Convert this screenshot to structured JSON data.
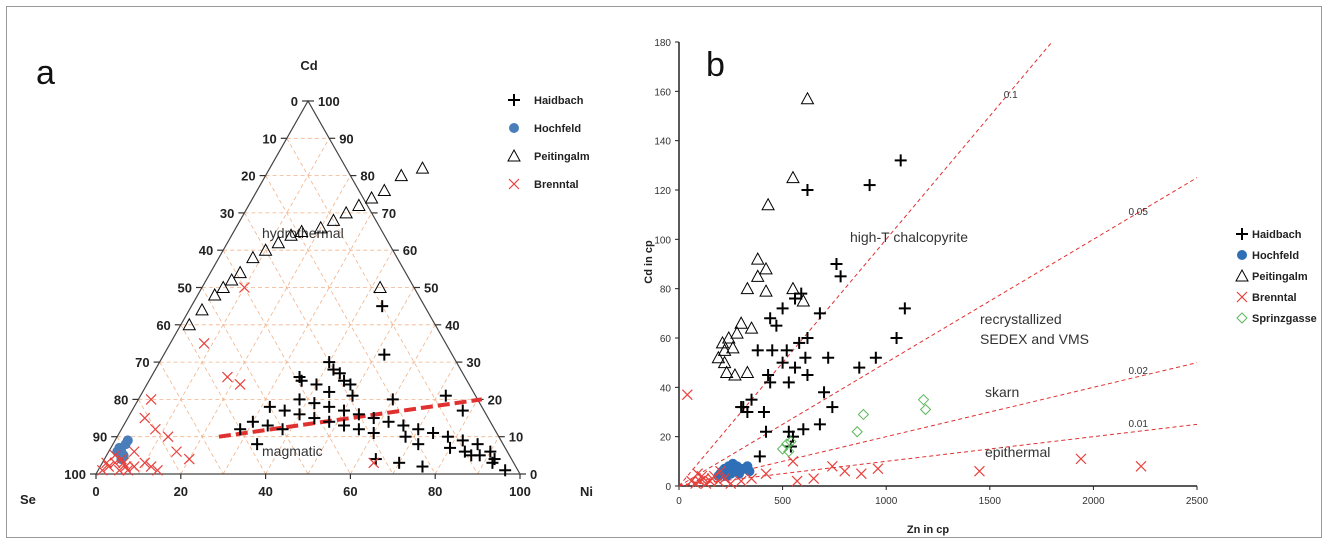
{
  "chart_data": [
    {
      "panel_label": "a",
      "type": "ternary",
      "vertex_labels": {
        "top": "Cd",
        "left": "Se",
        "right": "Ni"
      },
      "ticks": [
        0,
        10,
        20,
        30,
        40,
        50,
        60,
        70,
        80,
        90,
        100
      ],
      "bottom_ticks": [
        0,
        20,
        40,
        60,
        80,
        100
      ],
      "region_labels": [
        "hydrothermal",
        "magmatic"
      ],
      "boundary_line": [
        {
          "ni": 24,
          "cd": 10
        },
        {
          "ni": 81,
          "cd": 20
        }
      ],
      "legend": {
        "position": "right",
        "entries": [
          {
            "name": "Haidbach",
            "marker": "plus",
            "color": "#000000"
          },
          {
            "name": "Hochfeld",
            "marker": "dot",
            "color": "#4a7ebb"
          },
          {
            "name": "Peitingalm",
            "marker": "triangle",
            "color": "#000000"
          },
          {
            "name": "Brenntal",
            "marker": "x",
            "color": "#e8413c"
          }
        ]
      },
      "series": [
        {
          "name": "Haidbach",
          "points": [
            [
              45,
              45
            ],
            [
              52,
              32
            ],
            [
              40,
              30
            ],
            [
              42,
              28
            ],
            [
              44,
              27
            ],
            [
              46,
              25
            ],
            [
              48,
              24
            ],
            [
              35,
              26
            ],
            [
              36,
              25
            ],
            [
              40,
              24
            ],
            [
              44,
              22
            ],
            [
              50,
              21
            ],
            [
              38,
              20
            ],
            [
              42,
              19
            ],
            [
              46,
              18
            ],
            [
              50,
              17
            ],
            [
              54,
              16
            ],
            [
              58,
              15
            ],
            [
              62,
              14
            ],
            [
              66,
              13
            ],
            [
              70,
              12
            ],
            [
              74,
              11
            ],
            [
              78,
              10
            ],
            [
              82,
              9
            ],
            [
              86,
              8
            ],
            [
              90,
              6
            ],
            [
              88,
              5
            ],
            [
              92,
              4
            ],
            [
              84,
              6
            ],
            [
              80,
              7
            ],
            [
              72,
              8
            ],
            [
              68,
              10
            ],
            [
              60,
              11
            ],
            [
              56,
              12
            ],
            [
              52,
              13
            ],
            [
              48,
              14
            ],
            [
              44,
              15
            ],
            [
              40,
              16
            ],
            [
              36,
              17
            ],
            [
              32,
              18
            ],
            [
              30,
              14
            ],
            [
              28,
              12
            ],
            [
              34,
              13
            ],
            [
              38,
              12
            ],
            [
              64,
              4
            ],
            [
              70,
              3
            ],
            [
              76,
              2
            ],
            [
              96,
              1
            ],
            [
              78,
              17
            ],
            [
              72,
              21
            ],
            [
              60,
              20
            ],
            [
              34,
              8
            ],
            [
              86,
              5
            ],
            [
              92,
              3
            ]
          ]
        },
        {
          "name": "Hochfeld",
          "points": [
            [
              3,
              9
            ],
            [
              3,
              8
            ],
            [
              2,
              7
            ],
            [
              2,
              6
            ],
            [
              3,
              6
            ],
            [
              4,
              5
            ],
            [
              4,
              4
            ]
          ]
        },
        {
          "name": "Peitingalm",
          "points": [
            [
              2,
              40
            ],
            [
              3,
              44
            ],
            [
              4,
              48
            ],
            [
              5,
              50
            ],
            [
              6,
              52
            ],
            [
              7,
              54
            ],
            [
              8,
              58
            ],
            [
              10,
              60
            ],
            [
              12,
              62
            ],
            [
              14,
              64
            ],
            [
              16,
              65
            ],
            [
              20,
              66
            ],
            [
              22,
              68
            ],
            [
              24,
              70
            ],
            [
              26,
              72
            ],
            [
              28,
              74
            ],
            [
              30,
              76
            ],
            [
              32,
              80
            ],
            [
              36,
              82
            ],
            [
              42,
              50
            ]
          ]
        },
        {
          "name": "Brenntal",
          "points": [
            [
              1,
              1
            ],
            [
              2,
              2
            ],
            [
              3,
              3
            ],
            [
              4,
              4
            ],
            [
              5,
              3
            ],
            [
              6,
              2
            ],
            [
              7,
              1
            ],
            [
              8,
              2
            ],
            [
              10,
              3
            ],
            [
              12,
              2
            ],
            [
              14,
              1
            ],
            [
              3,
              20
            ],
            [
              8,
              35
            ],
            [
              10,
              50
            ],
            [
              16,
              6
            ],
            [
              20,
              4
            ],
            [
              18,
              26
            ],
            [
              22,
              24
            ],
            [
              64,
              3
            ],
            [
              2,
              5
            ],
            [
              6,
              6
            ],
            [
              8,
              12
            ],
            [
              4,
              15
            ],
            [
              12,
              10
            ],
            [
              1,
              3
            ],
            [
              5,
              1
            ]
          ]
        }
      ]
    },
    {
      "panel_label": "b",
      "type": "scatter",
      "xlabel": "Zn in cp",
      "ylabel": "Cd in cp",
      "xlim": [
        0,
        2500
      ],
      "ylim": [
        0,
        180
      ],
      "xticks": [
        0,
        500,
        1000,
        1500,
        2000,
        2500
      ],
      "yticks": [
        0,
        20,
        40,
        60,
        80,
        100,
        120,
        140,
        160,
        180
      ],
      "ratio_lines": [
        {
          "label": "0.1",
          "ratio": 0.1
        },
        {
          "label": "0.05",
          "ratio": 0.05
        },
        {
          "label": "0.02",
          "ratio": 0.02
        },
        {
          "label": "0.01",
          "ratio": 0.01
        }
      ],
      "region_labels": [
        {
          "text": "high-T chalcopyrite"
        },
        {
          "text": "recrystallized"
        },
        {
          "text": "SEDEX and VMS"
        },
        {
          "text": "skarn"
        },
        {
          "text": "epithermal"
        }
      ],
      "legend": {
        "position": "right",
        "entries": [
          {
            "name": "Haidbach",
            "marker": "plus",
            "color": "#000000"
          },
          {
            "name": "Hochfeld",
            "marker": "dot",
            "color": "#2e6fb7"
          },
          {
            "name": "Peitingalm",
            "marker": "triangle",
            "color": "#000000"
          },
          {
            "name": "Brenntal",
            "marker": "x",
            "color": "#e8413c"
          },
          {
            "name": "Sprinzgasse",
            "marker": "diamond",
            "color": "#5cb85c"
          }
        ]
      },
      "series": [
        {
          "name": "Haidbach",
          "points": [
            [
              1070,
              132
            ],
            [
              920,
              122
            ],
            [
              620,
              120
            ],
            [
              760,
              90
            ],
            [
              780,
              85
            ],
            [
              1090,
              72
            ],
            [
              590,
              78
            ],
            [
              560,
              76
            ],
            [
              500,
              72
            ],
            [
              680,
              70
            ],
            [
              440,
              68
            ],
            [
              1050,
              60
            ],
            [
              620,
              60
            ],
            [
              380,
              55
            ],
            [
              450,
              55
            ],
            [
              520,
              55
            ],
            [
              610,
              52
            ],
            [
              720,
              52
            ],
            [
              950,
              52
            ],
            [
              500,
              50
            ],
            [
              560,
              48
            ],
            [
              870,
              48
            ],
            [
              430,
              45
            ],
            [
              620,
              45
            ],
            [
              440,
              42
            ],
            [
              530,
              42
            ],
            [
              700,
              38
            ],
            [
              740,
              32
            ],
            [
              350,
              35
            ],
            [
              300,
              32
            ],
            [
              330,
              30
            ],
            [
              410,
              30
            ],
            [
              680,
              25
            ],
            [
              600,
              23
            ],
            [
              530,
              22
            ],
            [
              420,
              22
            ],
            [
              550,
              20
            ],
            [
              540,
              16
            ],
            [
              390,
              12
            ],
            [
              310,
              32
            ],
            [
              580,
              58
            ],
            [
              470,
              65
            ]
          ]
        },
        {
          "name": "Hochfeld",
          "points": [
            [
              200,
              5
            ],
            [
              220,
              7
            ],
            [
              240,
              8
            ],
            [
              260,
              9
            ],
            [
              280,
              8
            ],
            [
              300,
              7
            ],
            [
              320,
              7
            ],
            [
              340,
              6
            ],
            [
              250,
              5
            ],
            [
              230,
              4
            ],
            [
              270,
              6
            ],
            [
              290,
              5
            ],
            [
              210,
              6
            ],
            [
              190,
              4
            ],
            [
              330,
              8
            ]
          ]
        },
        {
          "name": "Peitingalm",
          "points": [
            [
              620,
              157
            ],
            [
              550,
              125
            ],
            [
              430,
              114
            ],
            [
              380,
              92
            ],
            [
              420,
              88
            ],
            [
              380,
              85
            ],
            [
              330,
              80
            ],
            [
              420,
              79
            ],
            [
              550,
              80
            ],
            [
              210,
              58
            ],
            [
              240,
              60
            ],
            [
              280,
              62
            ],
            [
              300,
              66
            ],
            [
              350,
              64
            ],
            [
              220,
              55
            ],
            [
              260,
              56
            ],
            [
              190,
              52
            ],
            [
              220,
              50
            ],
            [
              230,
              46
            ],
            [
              270,
              45
            ],
            [
              330,
              46
            ],
            [
              600,
              75
            ]
          ]
        },
        {
          "name": "Brenntal",
          "points": [
            [
              40,
              37
            ],
            [
              90,
              5
            ],
            [
              120,
              3
            ],
            [
              150,
              2
            ],
            [
              170,
              4
            ],
            [
              200,
              6
            ],
            [
              100,
              2
            ],
            [
              130,
              1
            ],
            [
              160,
              3
            ],
            [
              190,
              2
            ],
            [
              220,
              3
            ],
            [
              250,
              1
            ],
            [
              300,
              2
            ],
            [
              350,
              3
            ],
            [
              420,
              5
            ],
            [
              550,
              10
            ],
            [
              570,
              2
            ],
            [
              650,
              3
            ],
            [
              740,
              8
            ],
            [
              800,
              6
            ],
            [
              880,
              5
            ],
            [
              960,
              7
            ],
            [
              1450,
              6
            ],
            [
              1940,
              11
            ],
            [
              2230,
              8
            ],
            [
              80,
              1
            ],
            [
              60,
              2
            ],
            [
              110,
              4
            ]
          ]
        },
        {
          "name": "Sprinzgasse",
          "points": [
            [
              500,
              15
            ],
            [
              520,
              17
            ],
            [
              530,
              14
            ],
            [
              540,
              18
            ],
            [
              890,
              29
            ],
            [
              860,
              22
            ],
            [
              1180,
              35
            ],
            [
              1190,
              31
            ]
          ]
        }
      ]
    }
  ]
}
